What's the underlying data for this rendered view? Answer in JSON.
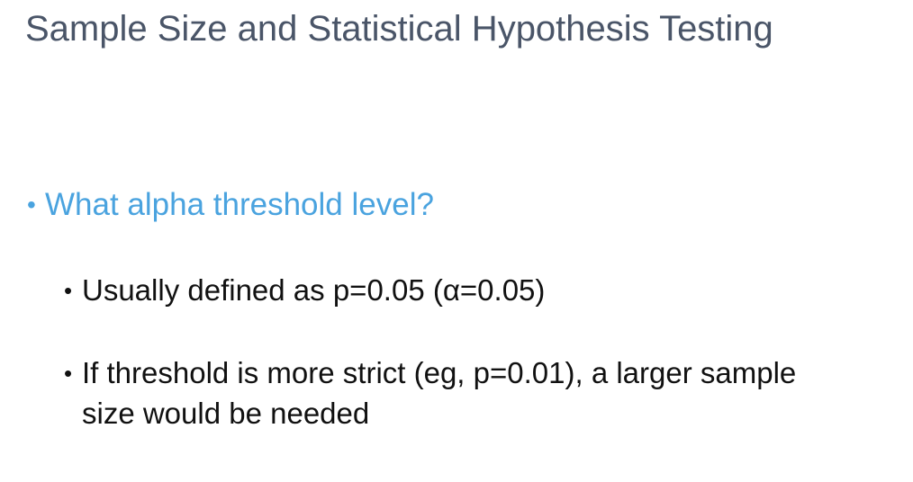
{
  "slide": {
    "title": "Sample Size and Statistical Hypothesis Testing",
    "bullets": [
      {
        "level": 1,
        "marker": "•",
        "text": "What alpha threshold level?"
      },
      {
        "level": 2,
        "marker": "•",
        "text": "Usually defined as p=0.05 (α=0.05)"
      },
      {
        "level": 2,
        "marker": "•",
        "text": "If threshold is more strict (eg, p=0.01), a larger sample size would be needed"
      }
    ],
    "colors": {
      "title": "#4a5568",
      "level1": "#4aa3df",
      "level2": "#111111",
      "background": "#ffffff"
    }
  }
}
